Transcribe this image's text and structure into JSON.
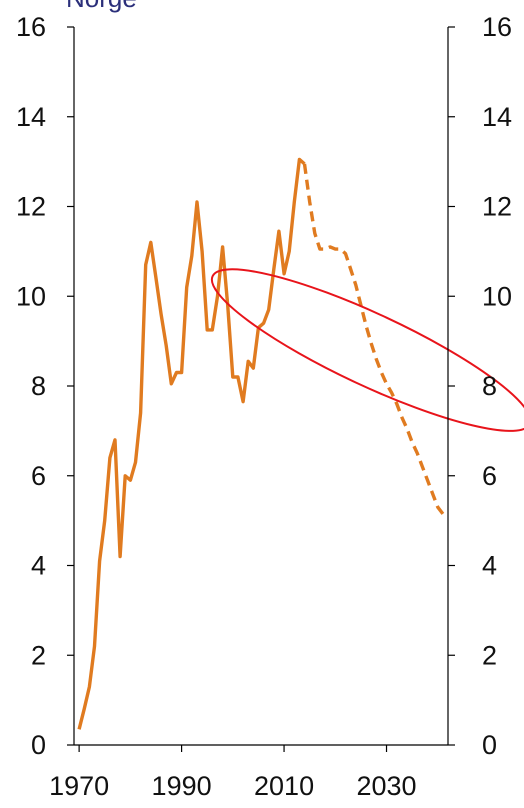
{
  "chart_data": {
    "type": "line",
    "title": "Norge",
    "xlabel": "",
    "ylabel": "",
    "xlim": [
      1969,
      2042
    ],
    "ylim": [
      0,
      16
    ],
    "x_ticks": [
      1970,
      1990,
      2010,
      2030
    ],
    "x_tick_labels": [
      "1970",
      "1990",
      "2010",
      "2030"
    ],
    "y_ticks": [
      0,
      2,
      4,
      6,
      8,
      10,
      12,
      14,
      16
    ],
    "y_tick_labels": [
      "0",
      "2",
      "4",
      "6",
      "8",
      "10",
      "12",
      "14",
      "16"
    ],
    "y_axis_mirrored_right": true,
    "grid": false,
    "legend": "none",
    "colors": {
      "line": "#e07b20",
      "annotation": "#e8141b",
      "title": "#2b2f7a"
    },
    "series": [
      {
        "style": "solid",
        "x": [
          1970,
          1971,
          1972,
          1973,
          1974,
          1975,
          1976,
          1977,
          1978,
          1979,
          1980,
          1981,
          1982,
          1983,
          1984,
          1985,
          1986,
          1987,
          1988,
          1989,
          1990,
          1991,
          1992,
          1993,
          1994,
          1995,
          1996,
          1997,
          1998,
          1999,
          2000,
          2001,
          2002,
          2003,
          2004,
          2005,
          2006,
          2007,
          2008,
          2009,
          2010,
          2011,
          2012,
          2013,
          2014
        ],
        "values": [
          0.35,
          0.8,
          1.3,
          2.2,
          4.1,
          5.0,
          6.4,
          6.8,
          4.2,
          6.0,
          5.9,
          6.3,
          7.4,
          10.7,
          11.2,
          10.4,
          9.6,
          8.9,
          8.05,
          8.3,
          8.3,
          10.2,
          10.9,
          12.1,
          11.0,
          9.25,
          9.25,
          10.0,
          11.1,
          9.8,
          8.2,
          8.2,
          7.65,
          8.55,
          8.4,
          9.3,
          9.4,
          9.7,
          10.6,
          11.45,
          10.5,
          11.0,
          12.1,
          13.05,
          12.95
        ]
      },
      {
        "style": "dashed",
        "x": [
          2014,
          2015,
          2016,
          2017,
          2018,
          2019,
          2020,
          2021,
          2022,
          2023,
          2024,
          2025,
          2026,
          2027,
          2028,
          2029,
          2030,
          2031,
          2032,
          2033,
          2034,
          2035,
          2036,
          2037,
          2038,
          2039,
          2040,
          2041
        ],
        "values": [
          12.95,
          12.1,
          11.4,
          11.05,
          11.05,
          11.1,
          11.05,
          11.05,
          10.95,
          10.6,
          10.25,
          9.8,
          9.35,
          8.95,
          8.6,
          8.3,
          8.05,
          7.85,
          7.6,
          7.3,
          7.05,
          6.75,
          6.5,
          6.2,
          5.9,
          5.6,
          5.3,
          5.15
        ]
      }
    ],
    "annotation": {
      "type": "ellipse",
      "color": "#e8141b",
      "center": [
        2027,
        8.8
      ],
      "radii": [
        7,
        3.9
      ],
      "rotation_deg": -65
    }
  }
}
